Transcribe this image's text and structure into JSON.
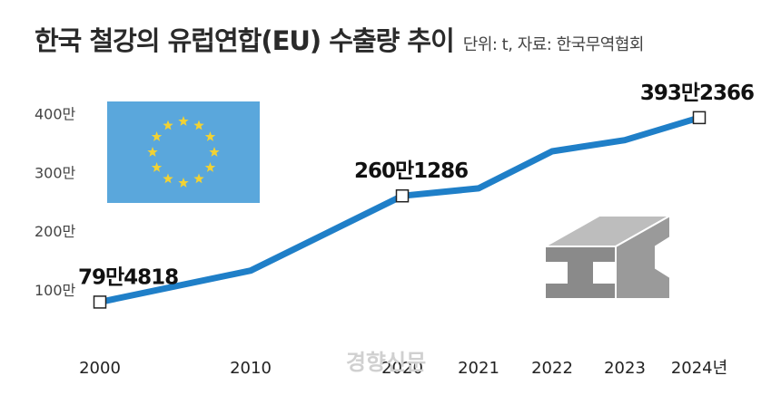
{
  "title": "한국 철강의 유럽연합(EU) 수출량 추이",
  "unit_note": "단위: t, 자료: 한국무역협회",
  "watermark": "경향신문",
  "colors": {
    "line": "#1f7fc8",
    "flag": "#5aa7dc",
    "star": "#f2d233",
    "steel": "#9a9a9a"
  },
  "icons": [
    "eu-flag-icon",
    "steel-beam-icon"
  ],
  "chart_data": {
    "type": "line",
    "x": [
      "2000",
      "2010",
      "2020",
      "2021",
      "2022",
      "2023",
      "2024년"
    ],
    "values": [
      794818,
      1330000,
      2601286,
      2730000,
      3360000,
      3550000,
      3932366
    ],
    "ylim": [
      0,
      4300000
    ],
    "yticks": [
      {
        "value": 1000000,
        "label": "100만"
      },
      {
        "value": 2000000,
        "label": "200만"
      },
      {
        "value": 3000000,
        "label": "300만"
      },
      {
        "value": 4000000,
        "label": "400만"
      }
    ],
    "labels": [
      {
        "index": 0,
        "text": "79만4818"
      },
      {
        "index": 2,
        "text": "260만1286"
      },
      {
        "index": 6,
        "text": "393만2366"
      }
    ],
    "grid": false
  }
}
